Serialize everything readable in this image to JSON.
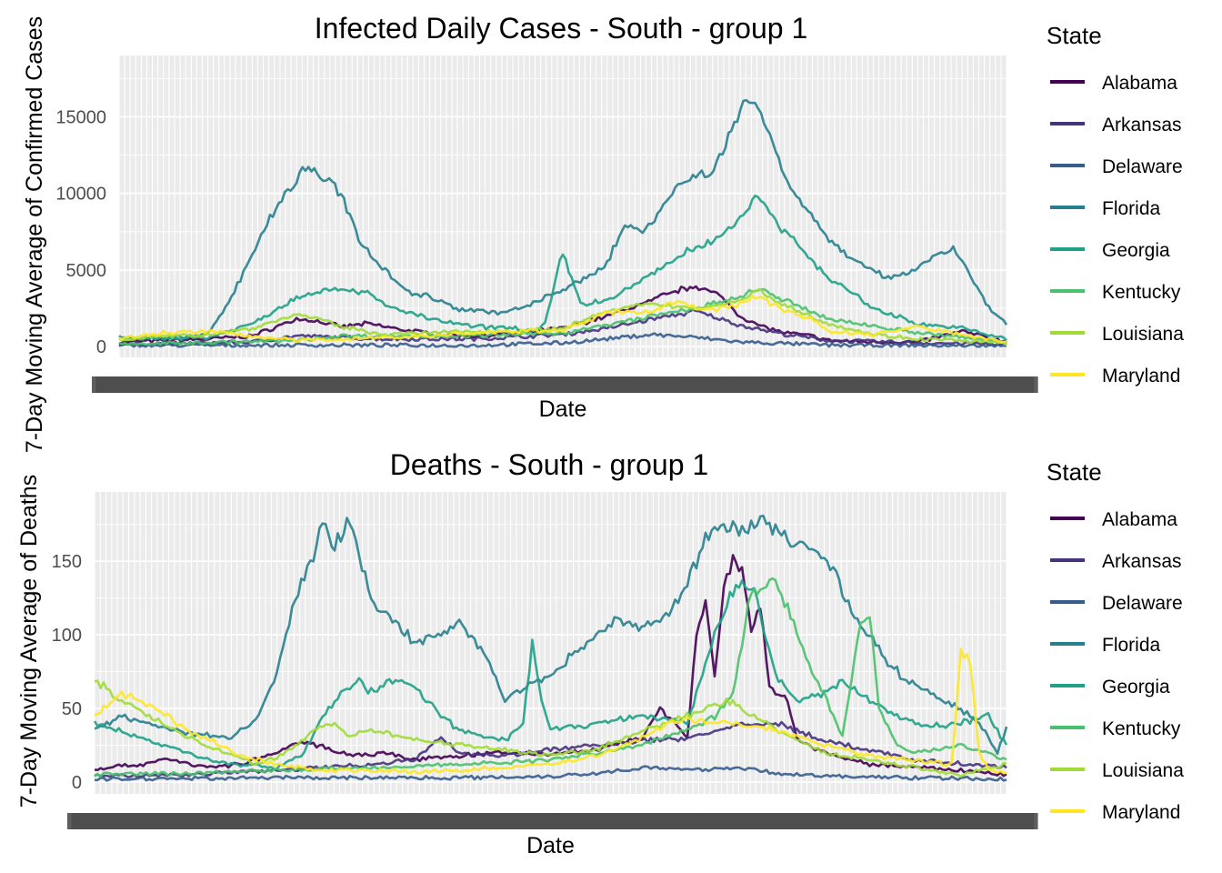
{
  "chart_data": [
    {
      "type": "line",
      "title": "Infected Daily Cases - South - group 1",
      "xlabel": "Date",
      "ylabel": "7-Day Moving Average of Confirmed Cases",
      "yticks": [
        0,
        5000,
        10000,
        15000
      ],
      "ylim": [
        -700,
        19000
      ],
      "xlim": [
        0,
        100
      ],
      "x_tick_labels_overplotted": true,
      "grid": true,
      "legend": {
        "title": "State",
        "position": "right"
      },
      "series": [
        {
          "name": "Alabama",
          "color": "#440154",
          "x": [
            0,
            10,
            15,
            20,
            22,
            25,
            28,
            32,
            36,
            40,
            45,
            50,
            55,
            60,
            62,
            65,
            68,
            70,
            72,
            75,
            78,
            80,
            85,
            90,
            95,
            100
          ],
          "y": [
            300,
            500,
            700,
            1800,
            1700,
            1300,
            1500,
            1100,
            800,
            700,
            900,
            1200,
            2000,
            3000,
            3500,
            4000,
            3200,
            2000,
            1400,
            900,
            700,
            400,
            300,
            300,
            1000,
            300
          ]
        },
        {
          "name": "Arkansas",
          "color": "#46337E",
          "x": [
            0,
            15,
            20,
            25,
            30,
            40,
            50,
            55,
            60,
            62,
            65,
            70,
            75,
            80,
            90,
            100
          ],
          "y": [
            150,
            300,
            700,
            600,
            500,
            500,
            800,
            1200,
            1800,
            2000,
            2300,
            1400,
            800,
            400,
            250,
            150
          ]
        },
        {
          "name": "Delaware",
          "color": "#365C8D",
          "x": [
            0,
            20,
            40,
            50,
            55,
            60,
            65,
            70,
            80,
            100
          ],
          "y": [
            60,
            100,
            80,
            250,
            500,
            800,
            600,
            300,
            100,
            40
          ]
        },
        {
          "name": "Florida",
          "color": "#277F8E",
          "x": [
            0,
            5,
            10,
            12,
            15,
            17,
            19,
            21,
            23,
            25,
            27,
            30,
            33,
            35,
            38,
            40,
            43,
            46,
            49,
            52,
            55,
            57,
            59,
            61,
            63,
            65,
            67,
            69,
            71,
            73,
            75,
            78,
            80,
            83,
            86,
            88,
            90,
            92,
            94,
            96,
            98,
            100
          ],
          "y": [
            700,
            500,
            800,
            2500,
            6000,
            8500,
            10000,
            11800,
            11000,
            10000,
            7000,
            5000,
            3400,
            3300,
            2500,
            2400,
            2200,
            2600,
            3500,
            4200,
            5500,
            8000,
            7500,
            9000,
            10500,
            11200,
            11500,
            14000,
            16500,
            14500,
            11000,
            8500,
            7000,
            5500,
            4600,
            4500,
            5200,
            5800,
            6500,
            4500,
            2500,
            1500
          ]
        },
        {
          "name": "Georgia",
          "color": "#1FA187",
          "x": [
            0,
            10,
            15,
            20,
            22,
            25,
            28,
            30,
            35,
            40,
            45,
            47,
            48,
            50,
            52,
            55,
            58,
            62,
            65,
            68,
            70,
            72,
            75,
            80,
            85,
            90,
            95,
            100
          ],
          "y": [
            500,
            600,
            1500,
            3200,
            3600,
            3800,
            3500,
            2700,
            1800,
            1300,
            1200,
            1000,
            1500,
            6200,
            2800,
            3000,
            4000,
            5500,
            6500,
            7200,
            8500,
            9800,
            7500,
            4500,
            2500,
            1500,
            1200,
            500
          ]
        },
        {
          "name": "Kentucky",
          "color": "#4AC16D",
          "x": [
            0,
            20,
            25,
            30,
            40,
            50,
            55,
            60,
            65,
            70,
            72,
            75,
            80,
            90,
            100
          ],
          "y": [
            150,
            400,
            700,
            700,
            700,
            900,
            1400,
            2000,
            2500,
            3200,
            3800,
            3000,
            1800,
            900,
            300
          ]
        },
        {
          "name": "Louisiana",
          "color": "#A0DA39",
          "x": [
            0,
            10,
            15,
            20,
            22,
            25,
            28,
            30,
            35,
            40,
            45,
            50,
            55,
            60,
            65,
            70,
            72,
            75,
            80,
            85,
            90,
            95,
            100
          ],
          "y": [
            500,
            800,
            1200,
            2100,
            1900,
            1300,
            1000,
            800,
            900,
            1000,
            1000,
            1200,
            2300,
            2800,
            2500,
            3000,
            3700,
            2700,
            1500,
            800,
            500,
            400,
            200
          ]
        },
        {
          "name": "Maryland",
          "color": "#FDE725",
          "x": [
            0,
            5,
            10,
            15,
            20,
            25,
            30,
            35,
            40,
            45,
            50,
            52,
            55,
            60,
            63,
            65,
            67,
            70,
            72,
            75,
            78,
            80,
            85,
            90,
            95,
            100
          ],
          "y": [
            500,
            900,
            1000,
            700,
            400,
            500,
            600,
            700,
            900,
            1000,
            1100,
            1500,
            2200,
            2300,
            3000,
            2500,
            2400,
            2800,
            3300,
            2400,
            1800,
            1000,
            800,
            1300,
            800,
            300
          ]
        }
      ]
    },
    {
      "type": "line",
      "title": "Deaths - South - group 1",
      "xlabel": "Date",
      "ylabel": "7-Day Moving Average of Deaths",
      "yticks": [
        0,
        50,
        100,
        150
      ],
      "ylim": [
        -8,
        197
      ],
      "xlim": [
        0,
        100
      ],
      "x_tick_labels_overplotted": true,
      "grid": true,
      "legend": {
        "title": "State",
        "position": "right"
      },
      "series": [
        {
          "name": "Alabama",
          "color": "#440154",
          "x": [
            0,
            5,
            8,
            12,
            16,
            20,
            23,
            26,
            29,
            32,
            35,
            40,
            45,
            50,
            55,
            60,
            62,
            65,
            66,
            67,
            68,
            69,
            70,
            71,
            72,
            73,
            74,
            75,
            76,
            77,
            78,
            80,
            85,
            90,
            95,
            100
          ],
          "y": [
            9,
            12,
            16,
            10,
            12,
            20,
            28,
            22,
            18,
            20,
            15,
            18,
            20,
            19,
            22,
            30,
            50,
            30,
            100,
            125,
            70,
            130,
            150,
            145,
            100,
            120,
            65,
            60,
            55,
            30,
            25,
            20,
            12,
            10,
            8,
            5
          ]
        },
        {
          "name": "Arkansas",
          "color": "#46337E",
          "x": [
            0,
            10,
            20,
            25,
            30,
            35,
            38,
            40,
            45,
            50,
            55,
            60,
            65,
            70,
            75,
            80,
            90,
            100
          ],
          "y": [
            4,
            5,
            8,
            10,
            12,
            15,
            30,
            20,
            18,
            22,
            25,
            28,
            30,
            38,
            40,
            28,
            15,
            10
          ]
        },
        {
          "name": "Delaware",
          "color": "#365C8D",
          "x": [
            0,
            20,
            40,
            50,
            55,
            60,
            65,
            70,
            75,
            80,
            90,
            100
          ],
          "y": [
            2,
            3,
            3,
            4,
            6,
            10,
            8,
            10,
            6,
            4,
            3,
            2
          ]
        },
        {
          "name": "Florida",
          "color": "#277F8E",
          "x": [
            0,
            3,
            6,
            9,
            12,
            15,
            18,
            20,
            22,
            24,
            25,
            26,
            27,
            28,
            29,
            31,
            33,
            35,
            38,
            40,
            43,
            45,
            47,
            50,
            52,
            55,
            57,
            60,
            63,
            65,
            67,
            69,
            71,
            73,
            75,
            77,
            79,
            81,
            83,
            85,
            87,
            89,
            91,
            93,
            95,
            97,
            99,
            100
          ],
          "y": [
            35,
            45,
            40,
            35,
            32,
            30,
            45,
            75,
            125,
            155,
            180,
            160,
            165,
            180,
            150,
            118,
            108,
            95,
            100,
            110,
            85,
            55,
            65,
            70,
            85,
            100,
            110,
            105,
            115,
            135,
            165,
            175,
            170,
            180,
            170,
            160,
            160,
            145,
            115,
            100,
            80,
            70,
            62,
            55,
            50,
            40,
            20,
            38
          ]
        },
        {
          "name": "Georgia",
          "color": "#1FA187",
          "x": [
            0,
            5,
            10,
            15,
            20,
            23,
            25,
            27,
            29,
            30,
            33,
            35,
            38,
            40,
            43,
            45,
            47,
            48,
            49,
            50,
            55,
            60,
            65,
            68,
            70,
            72,
            74,
            75,
            77,
            80,
            82,
            85,
            88,
            90,
            93,
            95,
            98,
            100
          ],
          "y": [
            40,
            30,
            20,
            12,
            10,
            20,
            45,
            60,
            70,
            60,
            70,
            65,
            45,
            35,
            30,
            28,
            40,
            95,
            55,
            35,
            40,
            45,
            40,
            100,
            130,
            135,
            90,
            70,
            55,
            60,
            70,
            55,
            45,
            40,
            38,
            40,
            45,
            25
          ]
        },
        {
          "name": "Kentucky",
          "color": "#4AC16D",
          "x": [
            0,
            10,
            20,
            30,
            40,
            50,
            55,
            60,
            62,
            65,
            68,
            70,
            72,
            74,
            75,
            76,
            78,
            80,
            82,
            84,
            85,
            86,
            88,
            90,
            95,
            100
          ],
          "y": [
            5,
            6,
            8,
            10,
            12,
            15,
            20,
            25,
            30,
            35,
            45,
            60,
            130,
            138,
            130,
            120,
            85,
            60,
            30,
            110,
            115,
            50,
            25,
            20,
            25,
            15
          ]
        },
        {
          "name": "Louisiana",
          "color": "#A0DA39",
          "x": [
            0,
            3,
            6,
            9,
            12,
            15,
            18,
            21,
            24,
            26,
            28,
            30,
            33,
            36,
            40,
            45,
            50,
            55,
            60,
            63,
            65,
            67,
            70,
            72,
            75,
            80,
            85,
            90,
            95,
            100
          ],
          "y": [
            70,
            55,
            45,
            35,
            25,
            18,
            12,
            20,
            35,
            40,
            32,
            35,
            32,
            28,
            25,
            22,
            18,
            22,
            35,
            40,
            45,
            50,
            55,
            45,
            35,
            20,
            15,
            10,
            5,
            12
          ]
        },
        {
          "name": "Maryland",
          "color": "#FDE725",
          "x": [
            0,
            3,
            5,
            8,
            10,
            13,
            16,
            20,
            25,
            30,
            35,
            40,
            45,
            50,
            55,
            60,
            63,
            65,
            70,
            75,
            80,
            85,
            90,
            94,
            95,
            96,
            97,
            98,
            100
          ],
          "y": [
            45,
            60,
            55,
            45,
            35,
            28,
            18,
            12,
            8,
            8,
            7,
            8,
            10,
            12,
            18,
            30,
            40,
            42,
            40,
            35,
            25,
            18,
            15,
            12,
            88,
            82,
            20,
            8,
            6
          ]
        }
      ]
    }
  ]
}
